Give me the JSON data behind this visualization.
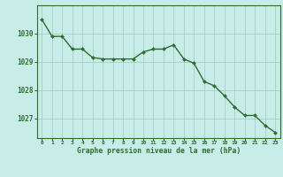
{
  "x": [
    0,
    1,
    2,
    3,
    4,
    5,
    6,
    7,
    8,
    9,
    10,
    11,
    12,
    13,
    14,
    15,
    16,
    17,
    18,
    19,
    20,
    21,
    22,
    23
  ],
  "y": [
    1030.5,
    1029.9,
    1029.9,
    1029.45,
    1029.45,
    1029.15,
    1029.1,
    1029.1,
    1029.1,
    1029.1,
    1029.35,
    1029.45,
    1029.45,
    1029.6,
    1029.1,
    1028.95,
    1028.3,
    1028.15,
    1027.8,
    1027.4,
    1027.1,
    1027.1,
    1026.75,
    1026.5
  ],
  "line_color": "#2d6e2d",
  "marker": "D",
  "marker_size": 2.0,
  "bg_color": "#c8ece8",
  "grid_color": "#a8ccc8",
  "tick_label_color": "#2d6e2d",
  "xlabel": "Graphe pression niveau de la mer (hPa)",
  "ylim": [
    1026.3,
    1031.0
  ],
  "yticks": [
    1027,
    1028,
    1029,
    1030
  ],
  "xticks": [
    0,
    1,
    2,
    3,
    4,
    5,
    6,
    7,
    8,
    9,
    10,
    11,
    12,
    13,
    14,
    15,
    16,
    17,
    18,
    19,
    20,
    21,
    22,
    23
  ],
  "line_width": 1.0,
  "border_color": "#2d6e2d"
}
